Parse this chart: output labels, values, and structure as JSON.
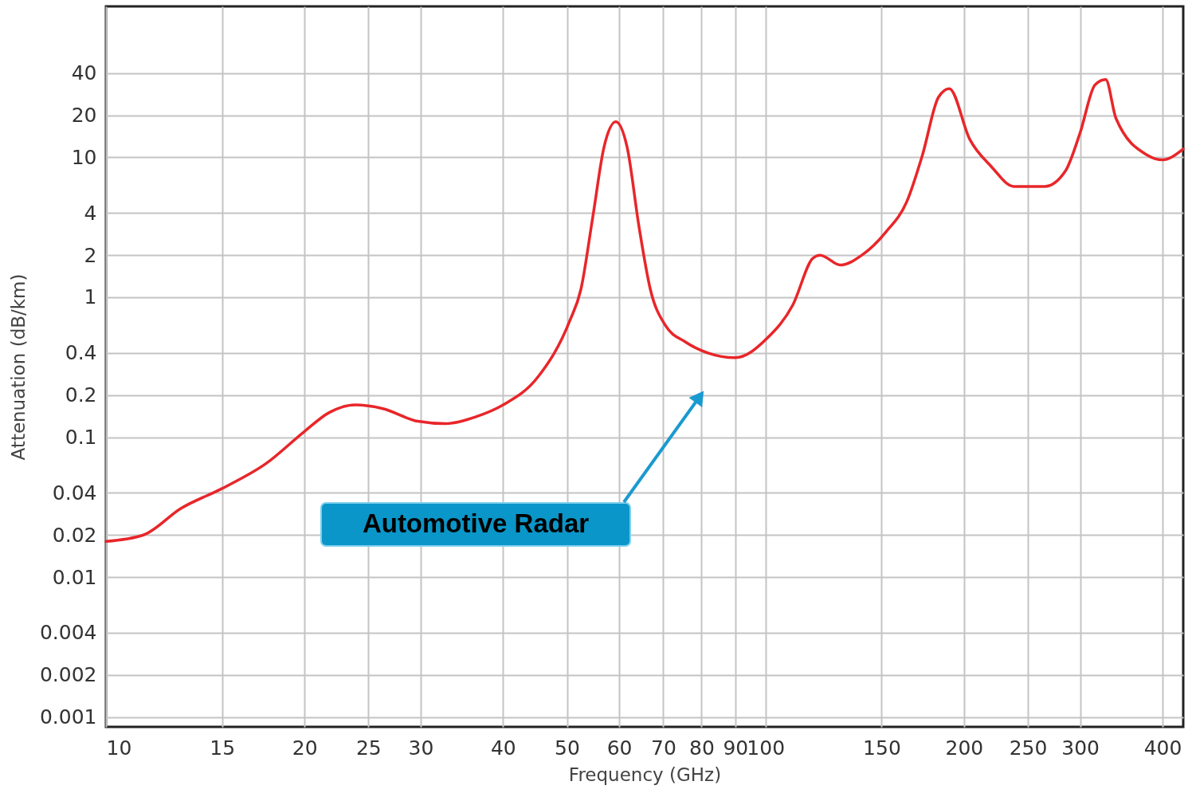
{
  "chart_data": {
    "type": "line",
    "xlabel": "Frequency (GHz)",
    "ylabel": "Attenuation (dB/km)",
    "log": "xy",
    "grid": true,
    "marker": "none",
    "line_style": "solid",
    "xlim": [
      10,
      430
    ],
    "xticks": [
      10,
      15,
      20,
      25,
      30,
      40,
      50,
      60,
      70,
      80,
      90,
      100,
      150,
      200,
      250,
      300,
      400
    ],
    "ylim": [
      0.00085,
      120
    ],
    "yticks": [
      0.001,
      0.002,
      0.004,
      0.01,
      0.02,
      0.04,
      0.1,
      0.2,
      0.4,
      1,
      2,
      4,
      10,
      20,
      40
    ],
    "series": [
      {
        "color": "#e8262a",
        "x": [
          10,
          11.4,
          13,
          15,
          17.5,
          20,
          21.8,
          23.9,
          26.3,
          29.7,
          32.7,
          36.4,
          40,
          45.2,
          50.5,
          52.5,
          54.7,
          56.9,
          59.3,
          61.7,
          64.3,
          66.9,
          70.5,
          75.6,
          81.8,
          90,
          100.6,
          110,
          118,
          121,
          130,
          140,
          152,
          164,
          173,
          183,
          190,
          204,
          220,
          238,
          265,
          285,
          300,
          316,
          328,
          340,
          379,
          400,
          430
        ],
        "values": [
          0.018,
          0.02,
          0.031,
          0.043,
          0.065,
          0.11,
          0.15,
          0.17,
          0.16,
          0.13,
          0.125,
          0.14,
          0.17,
          0.27,
          0.68,
          1.14,
          3.7,
          11.8,
          18,
          11.8,
          3.2,
          1.14,
          0.63,
          0.48,
          0.4,
          0.37,
          0.51,
          0.88,
          1.9,
          2,
          1.7,
          2,
          2.9,
          4.9,
          10.4,
          27,
          31,
          13.5,
          8.6,
          6.2,
          6.2,
          8,
          15,
          33,
          36,
          19,
          10.4,
          9.6,
          11.5
        ]
      }
    ],
    "annotations": [
      "Automotive Radar"
    ]
  }
}
